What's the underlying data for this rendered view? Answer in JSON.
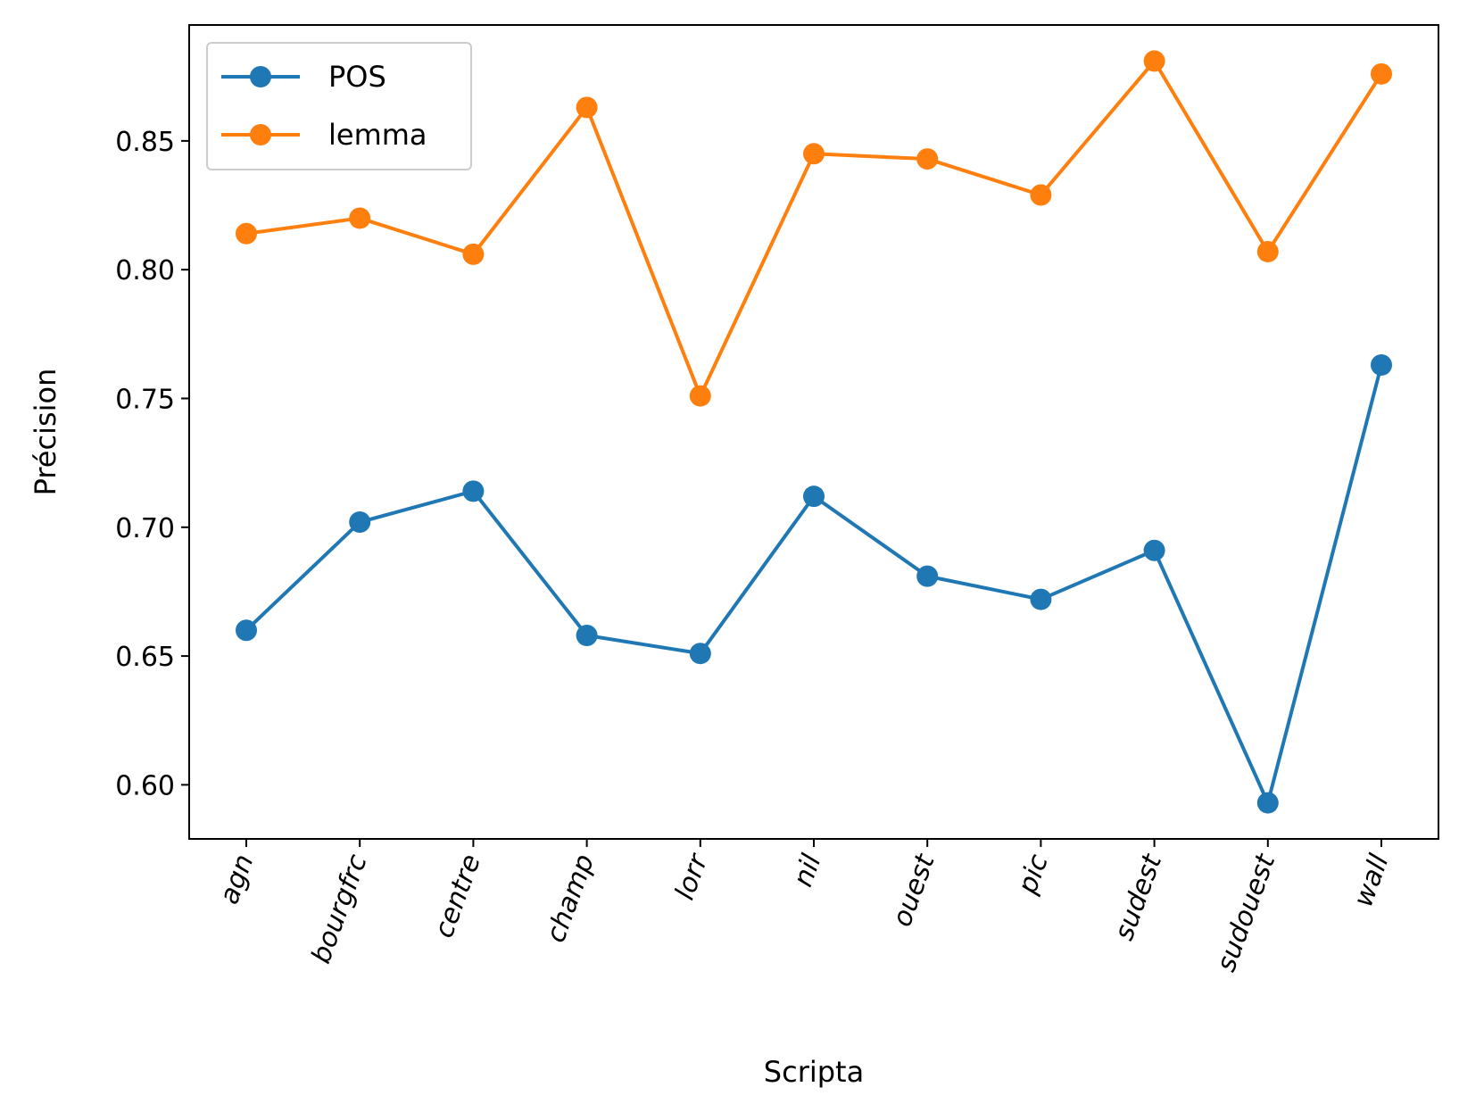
{
  "chart_data": {
    "type": "line",
    "xlabel": "Scripta",
    "ylabel": "Précision",
    "categories": [
      "agn",
      "bourgfrc",
      "centre",
      "champ",
      "lorr",
      "nil",
      "ouest",
      "pic",
      "sudest",
      "sudouest",
      "wall"
    ],
    "ylim": [
      0.579,
      0.895
    ],
    "yticks": [
      0.6,
      0.65,
      0.7,
      0.75,
      0.8,
      0.85
    ],
    "ytick_labels": [
      "0.60",
      "0.65",
      "0.70",
      "0.75",
      "0.80",
      "0.85"
    ],
    "legend_position": "top-left",
    "grid": false,
    "series": [
      {
        "name": "POS",
        "color": "#1f77b4",
        "marker": "circle",
        "values": [
          0.66,
          0.702,
          0.714,
          0.658,
          0.651,
          0.712,
          0.681,
          0.672,
          0.691,
          0.593,
          0.763
        ]
      },
      {
        "name": "lemma",
        "color": "#ff7f0e",
        "marker": "circle",
        "values": [
          0.814,
          0.82,
          0.806,
          0.863,
          0.751,
          0.845,
          0.843,
          0.829,
          0.881,
          0.807,
          0.876
        ]
      }
    ]
  }
}
